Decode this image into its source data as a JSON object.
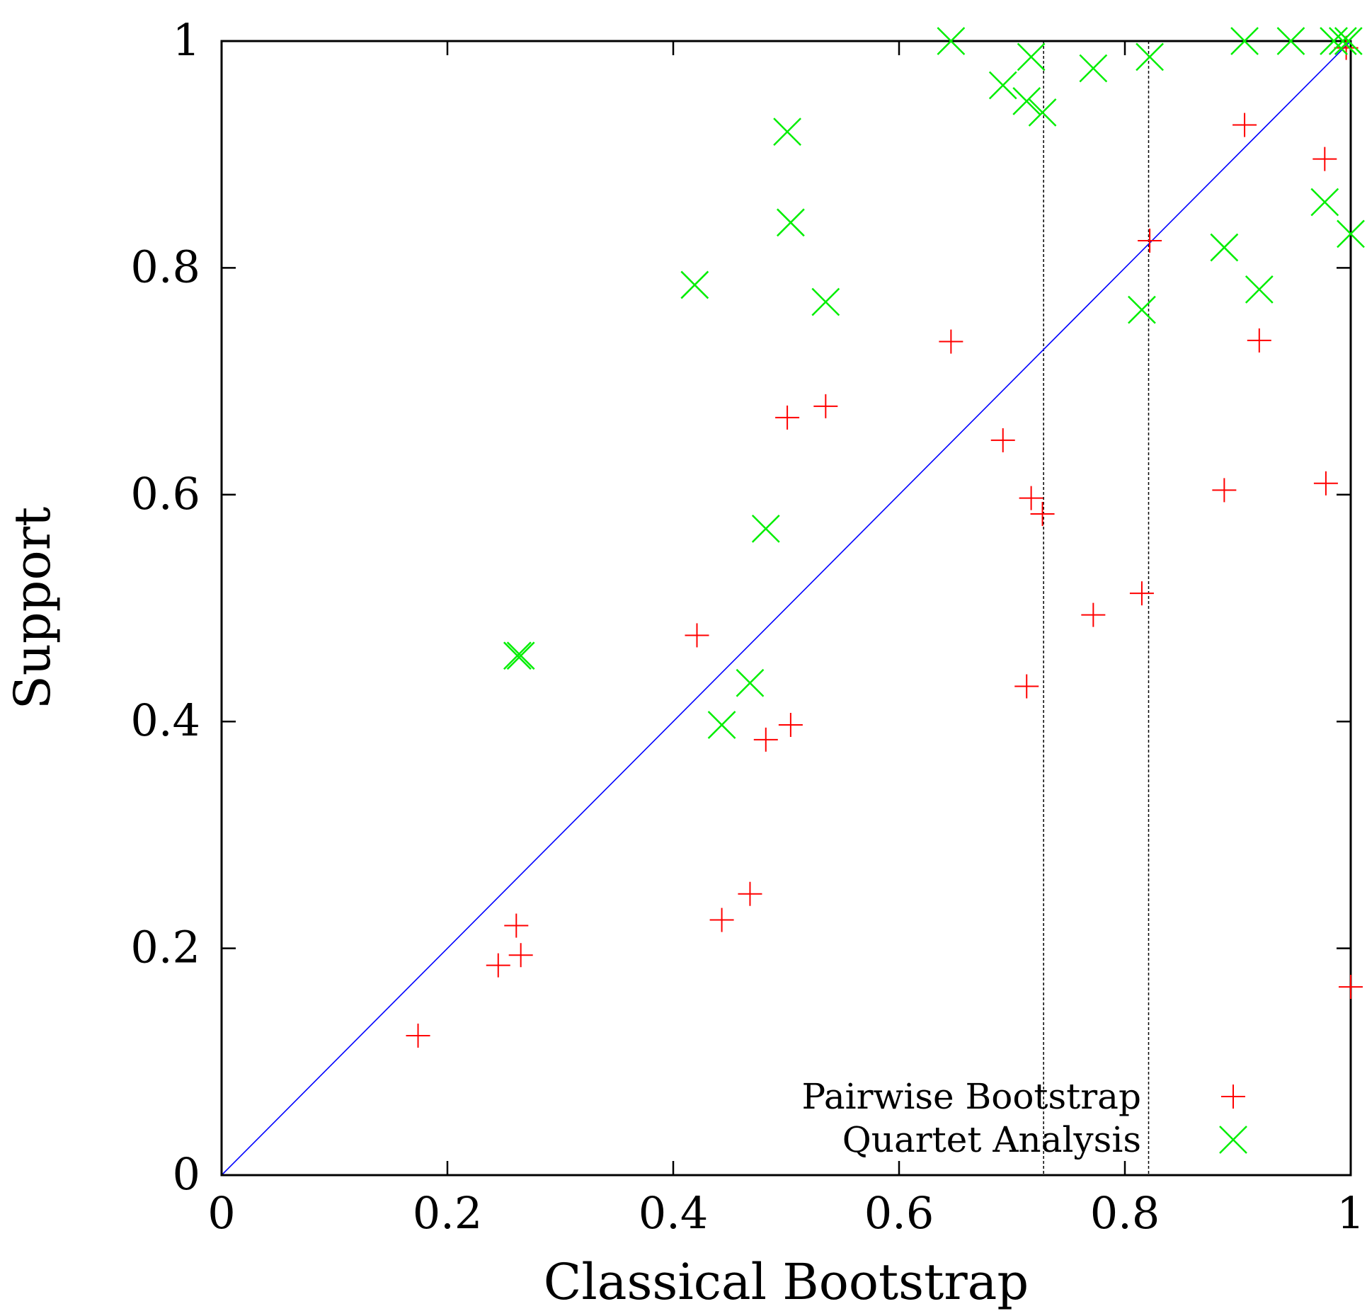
{
  "chart_data": {
    "type": "scatter",
    "title": "",
    "xlabel": "Classical Bootstrap",
    "ylabel": "Support",
    "xlim": [
      0,
      1
    ],
    "ylim": [
      0,
      1
    ],
    "xticks": [
      {
        "value": 0,
        "label": "0"
      },
      {
        "value": 0.2,
        "label": "0.2"
      },
      {
        "value": 0.4,
        "label": "0.4"
      },
      {
        "value": 0.6,
        "label": "0.6"
      },
      {
        "value": 0.8,
        "label": "0.8"
      },
      {
        "value": 1,
        "label": "1"
      }
    ],
    "yticks": [
      {
        "value": 0,
        "label": "0"
      },
      {
        "value": 0.2,
        "label": "0.2"
      },
      {
        "value": 0.4,
        "label": "0.4"
      },
      {
        "value": 0.6,
        "label": "0.6"
      },
      {
        "value": 0.8,
        "label": "0.8"
      },
      {
        "value": 1,
        "label": "1"
      }
    ],
    "grid": false,
    "legend_position": "bottom-right",
    "reference_line": {
      "from": [
        0,
        0
      ],
      "to": [
        1,
        1
      ],
      "color": "#0000ff"
    },
    "vertical_lines": [
      0.728,
      0.821
    ],
    "series": [
      {
        "name": "Pairwise Bootstrap",
        "marker": "plus",
        "color": "#ff0000",
        "points": [
          [
            0.174,
            0.123
          ],
          [
            0.245,
            0.185
          ],
          [
            0.261,
            0.22
          ],
          [
            0.265,
            0.194
          ],
          [
            0.421,
            0.476
          ],
          [
            0.443,
            0.225
          ],
          [
            0.468,
            0.248
          ],
          [
            0.482,
            0.384
          ],
          [
            0.501,
            0.668
          ],
          [
            0.504,
            0.397
          ],
          [
            0.535,
            0.678
          ],
          [
            0.646,
            0.735
          ],
          [
            0.692,
            0.648
          ],
          [
            0.713,
            0.431
          ],
          [
            0.717,
            0.597
          ],
          [
            0.727,
            0.583
          ],
          [
            0.772,
            0.494
          ],
          [
            0.815,
            0.513
          ],
          [
            0.822,
            0.824
          ],
          [
            0.888,
            0.604
          ],
          [
            0.906,
            0.926
          ],
          [
            0.919,
            0.736
          ],
          [
            0.977,
            0.896
          ],
          [
            0.978,
            0.61
          ],
          [
            0.996,
            0.994
          ],
          [
            1.0,
            0.166
          ]
        ]
      },
      {
        "name": "Quartet Analysis",
        "marker": "cross",
        "color": "#00ee00",
        "points": [
          [
            0.262,
            0.458
          ],
          [
            0.265,
            0.458
          ],
          [
            0.419,
            0.785
          ],
          [
            0.443,
            0.397
          ],
          [
            0.468,
            0.434
          ],
          [
            0.482,
            0.57
          ],
          [
            0.501,
            0.92
          ],
          [
            0.504,
            0.84
          ],
          [
            0.535,
            0.77
          ],
          [
            0.646,
            1.0
          ],
          [
            0.692,
            0.961
          ],
          [
            0.713,
            0.947
          ],
          [
            0.717,
            0.986
          ],
          [
            0.727,
            0.937
          ],
          [
            0.772,
            0.976
          ],
          [
            0.815,
            0.763
          ],
          [
            0.822,
            0.986
          ],
          [
            0.888,
            0.818
          ],
          [
            0.906,
            1.0
          ],
          [
            0.919,
            0.781
          ],
          [
            0.947,
            1.0
          ],
          [
            0.977,
            0.858
          ],
          [
            0.985,
            1.0
          ],
          [
            0.993,
            1.0
          ],
          [
            0.998,
            1.0
          ],
          [
            1.0,
            0.83
          ]
        ]
      }
    ]
  }
}
